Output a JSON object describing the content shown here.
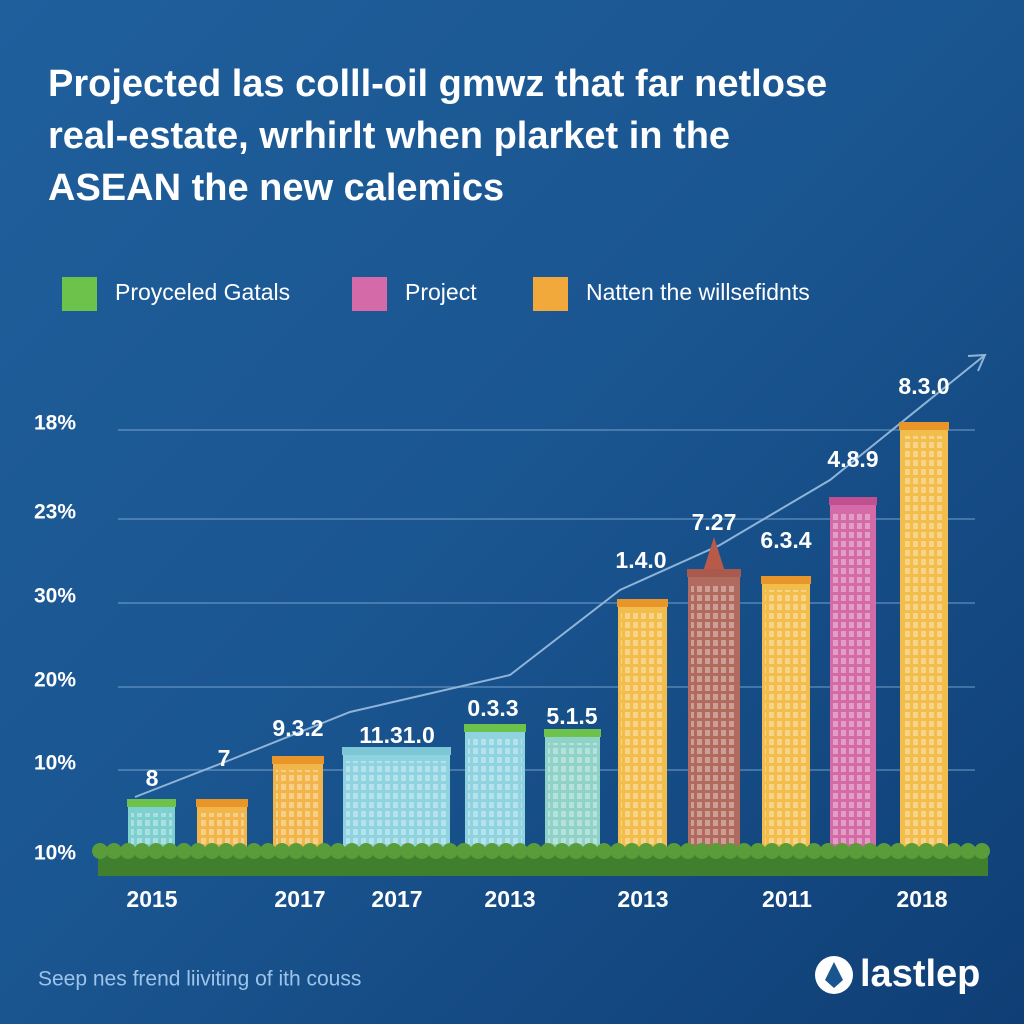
{
  "title": {
    "lines": [
      "Projected las colll-oil gmwz that far netlose",
      "real-estate, wrhirlt when plarket in the",
      "ASEAN the new calemics"
    ]
  },
  "legend": [
    {
      "label": "Proyceled Gatals",
      "color": "#6cc24a"
    },
    {
      "label": "Project",
      "color": "#d46aa8"
    },
    {
      "label": "Natten the willsefidnts",
      "color": "#f0a93a"
    }
  ],
  "y_axis_labels": [
    "18%",
    "23%",
    "30%",
    "20%",
    "10%",
    "10%"
  ],
  "bars": [
    {
      "label": "8"
    },
    {
      "label": "7"
    },
    {
      "label": "9.3.2"
    },
    {
      "label": "11.31.0"
    },
    {
      "label": "0.3.3"
    },
    {
      "label": "5.1.5"
    },
    {
      "label": "1.4.0"
    },
    {
      "label": "7.27"
    },
    {
      "label": "6.3.4"
    },
    {
      "label": "4.8.9"
    },
    {
      "label": "8.3.0"
    }
  ],
  "x_labels": [
    "2015",
    "2017",
    "2017",
    "2013",
    "2013",
    "2011",
    "2018"
  ],
  "footer": "Seep nes frend liiviting of ith couss",
  "logo": "lastlep"
}
